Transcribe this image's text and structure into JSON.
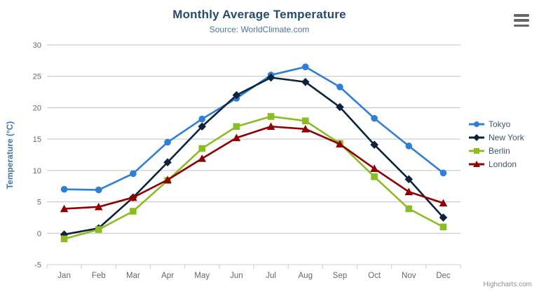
{
  "chart_data": {
    "type": "line",
    "title": "Monthly Average Temperature",
    "subtitle": "Source: WorldClimate.com",
    "xlabel": "",
    "ylabel": "Temperature (°C)",
    "ylim": [
      -5,
      30
    ],
    "ytick_interval": 5,
    "ytick_labels": [
      "-5",
      "0",
      "5",
      "10",
      "15",
      "20",
      "25",
      "30"
    ],
    "grid": true,
    "legend_position": "right",
    "categories": [
      "Jan",
      "Feb",
      "Mar",
      "Apr",
      "May",
      "Jun",
      "Jul",
      "Aug",
      "Sep",
      "Oct",
      "Nov",
      "Dec"
    ],
    "series": [
      {
        "name": "Tokyo",
        "color": "#2f7ed8",
        "marker": "circle",
        "values": [
          7.0,
          6.9,
          9.5,
          14.5,
          18.2,
          21.5,
          25.2,
          26.5,
          23.3,
          18.3,
          13.9,
          9.6
        ]
      },
      {
        "name": "New York",
        "color": "#0d233a",
        "marker": "diamond",
        "values": [
          -0.2,
          0.8,
          5.7,
          11.3,
          17.0,
          22.0,
          24.8,
          24.1,
          20.1,
          14.1,
          8.6,
          2.5
        ]
      },
      {
        "name": "Berlin",
        "color": "#8bbc21",
        "marker": "square",
        "values": [
          -0.9,
          0.6,
          3.5,
          8.4,
          13.5,
          17.0,
          18.6,
          17.9,
          14.3,
          9.0,
          3.9,
          1.0
        ]
      },
      {
        "name": "London",
        "color": "#910000",
        "marker": "triangle",
        "values": [
          3.9,
          4.2,
          5.7,
          8.5,
          11.9,
          15.2,
          17.0,
          16.6,
          14.2,
          10.3,
          6.6,
          4.8
        ]
      }
    ],
    "colors": {
      "grid": "#c0c0c0",
      "axis_line": "#c0d0e0",
      "tick": "#c0d0e0",
      "axis_label": "#666666",
      "legend_text": "#3e576f"
    }
  },
  "icons": {
    "export_menu": "hamburger-icon"
  },
  "credits": {
    "text": "Highcharts.com"
  }
}
